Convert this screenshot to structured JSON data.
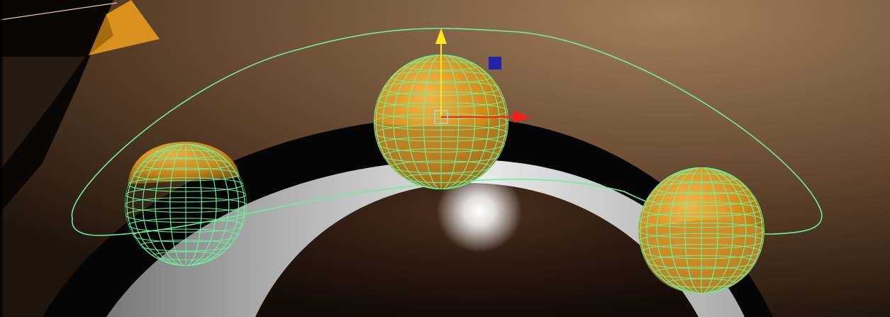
{
  "viewport": {
    "background_skin_light": "#8e6d4f",
    "background_skin_dark": "#2a1c10",
    "lid_rim_color": "#050505",
    "sclera_color": "#dcdcdc",
    "iris_color": "#3a2418",
    "highlight_color": "#ffffff",
    "wire_color": "#6cf09a",
    "sphere_color": "#d9921d"
  },
  "manipulator": {
    "y_axis_color": "#ffe81a",
    "x_axis_color": "#ff1a1a",
    "z_handle_color": "#2222aa",
    "center_handle_color": "#a9d7d4"
  },
  "spheres": [
    {
      "name": "left-sphere"
    },
    {
      "name": "center-sphere"
    },
    {
      "name": "right-sphere"
    }
  ]
}
